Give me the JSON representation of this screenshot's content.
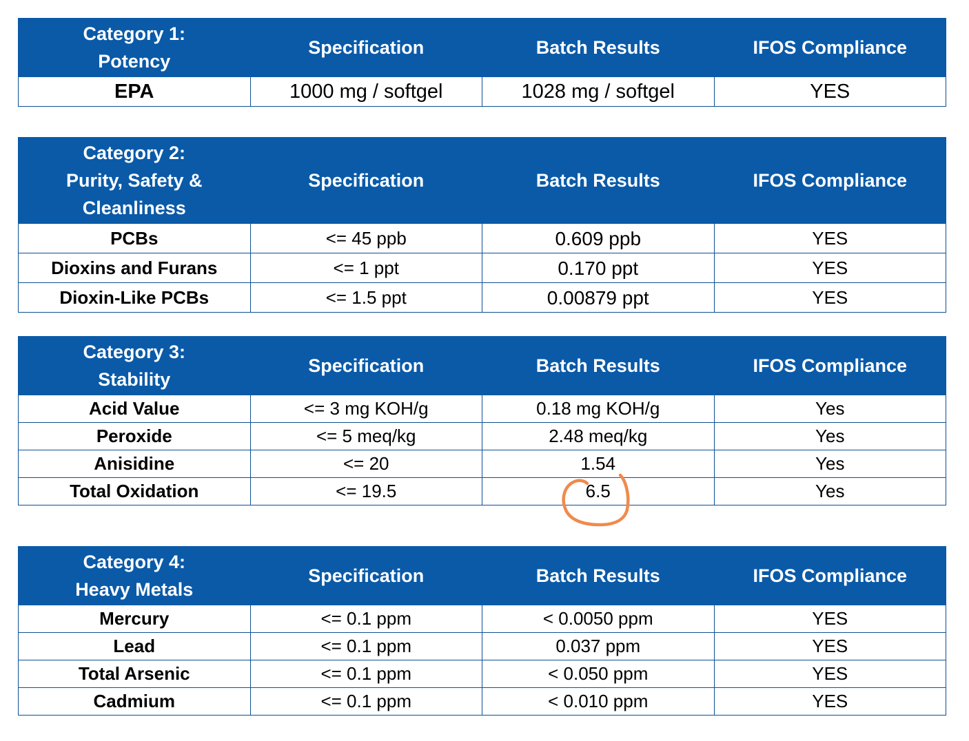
{
  "tables": [
    {
      "category_line1": "Category 1:",
      "category_line2": "Potency",
      "category_line3": "",
      "spec_header": "Specification",
      "results_header": "Batch Results",
      "compliance_header": "IFOS Compliance",
      "rows": [
        {
          "name": "EPA",
          "spec": "1000 mg / softgel",
          "result": "1028 mg / softgel",
          "compliance": "YES"
        }
      ]
    },
    {
      "category_line1": "Category 2:",
      "category_line2": "Purity, Safety &",
      "category_line3": "Cleanliness",
      "spec_header": "Specification",
      "results_header": "Batch Results",
      "compliance_header": "IFOS Compliance",
      "rows": [
        {
          "name": "PCBs",
          "spec": "<= 45 ppb",
          "result": "0.609 ppb",
          "compliance": "YES"
        },
        {
          "name": "Dioxins and Furans",
          "spec": "<= 1 ppt",
          "result": "0.170 ppt",
          "compliance": "YES"
        },
        {
          "name": "Dioxin-Like PCBs",
          "spec": "<= 1.5 ppt",
          "result": "0.00879 ppt",
          "compliance": "YES"
        }
      ]
    },
    {
      "category_line1": "Category 3:",
      "category_line2": "Stability",
      "category_line3": "",
      "spec_header": "Specification",
      "results_header": "Batch Results",
      "compliance_header": "IFOS Compliance",
      "rows": [
        {
          "name": "Acid Value",
          "spec": "<= 3 mg KOH/g",
          "result": "0.18 mg KOH/g",
          "compliance": "Yes"
        },
        {
          "name": "Peroxide",
          "spec": "<= 5 meq/kg",
          "result": "2.48 meq/kg",
          "compliance": "Yes"
        },
        {
          "name": "Anisidine",
          "spec": "<= 20",
          "result": "1.54",
          "compliance": "Yes"
        },
        {
          "name": "Total Oxidation",
          "spec": "<= 19.5",
          "result": "6.5",
          "compliance": "Yes"
        }
      ]
    },
    {
      "category_line1": "Category 4:",
      "category_line2": "Heavy Metals",
      "category_line3": "",
      "spec_header": "Specification",
      "results_header": "Batch Results",
      "compliance_header": "IFOS Compliance",
      "rows": [
        {
          "name": "Mercury",
          "spec": "<= 0.1 ppm",
          "result": "< 0.0050 ppm",
          "compliance": "YES"
        },
        {
          "name": "Lead",
          "spec": "<= 0.1 ppm",
          "result": "0.037 ppm",
          "compliance": "YES"
        },
        {
          "name": "Total Arsenic",
          "spec": "<= 0.1 ppm",
          "result": "< 0.050 ppm",
          "compliance": "YES"
        },
        {
          "name": "Cadmium",
          "spec": "<= 0.1 ppm",
          "result": "< 0.010 ppm",
          "compliance": "YES"
        }
      ]
    }
  ],
  "colors": {
    "header_bg": "#0a5aa8",
    "header_text": "#ffffff",
    "border": "#0b4f94",
    "annotation": "#f08a4b"
  },
  "annotation": {
    "type": "hand-drawn-circle",
    "highlights": "tables.2.rows.3.result"
  }
}
